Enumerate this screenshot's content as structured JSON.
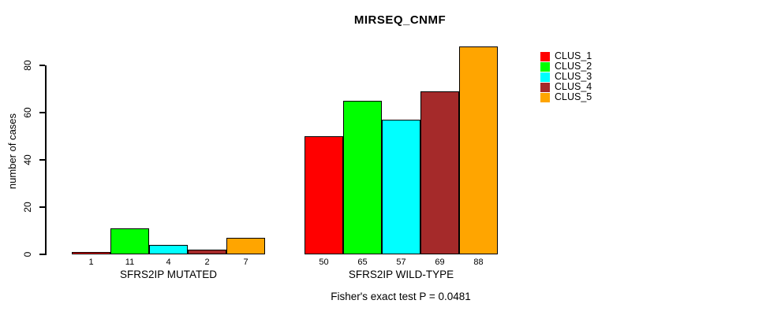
{
  "chart_data": {
    "type": "bar",
    "title": "MIRSEQ_CNMF",
    "ylabel": "number of cases",
    "xlabel": "",
    "annotation": "Fisher's exact test P = 0.0481",
    "ylim": [
      0,
      88
    ],
    "yticks": [
      0,
      20,
      40,
      60,
      80
    ],
    "grid": false,
    "legend_position": "right",
    "bar_value_labels_shown": true,
    "series": [
      {
        "name": "CLUS_1",
        "color": "#ff0000"
      },
      {
        "name": "CLUS_2",
        "color": "#00ff00"
      },
      {
        "name": "CLUS_3",
        "color": "#00ffff"
      },
      {
        "name": "CLUS_4",
        "color": "#a52a2a"
      },
      {
        "name": "CLUS_5",
        "color": "#ffa500"
      }
    ],
    "groups": [
      {
        "label": "SFRS2IP MUTATED",
        "values": [
          1,
          11,
          4,
          2,
          7
        ]
      },
      {
        "label": "SFRS2IP WILD-TYPE",
        "values": [
          50,
          65,
          57,
          69,
          88
        ]
      }
    ],
    "style_colors": {
      "axis": "#000000",
      "text": "#000000",
      "background": "#ffffff",
      "bar_border": "#000000"
    }
  }
}
